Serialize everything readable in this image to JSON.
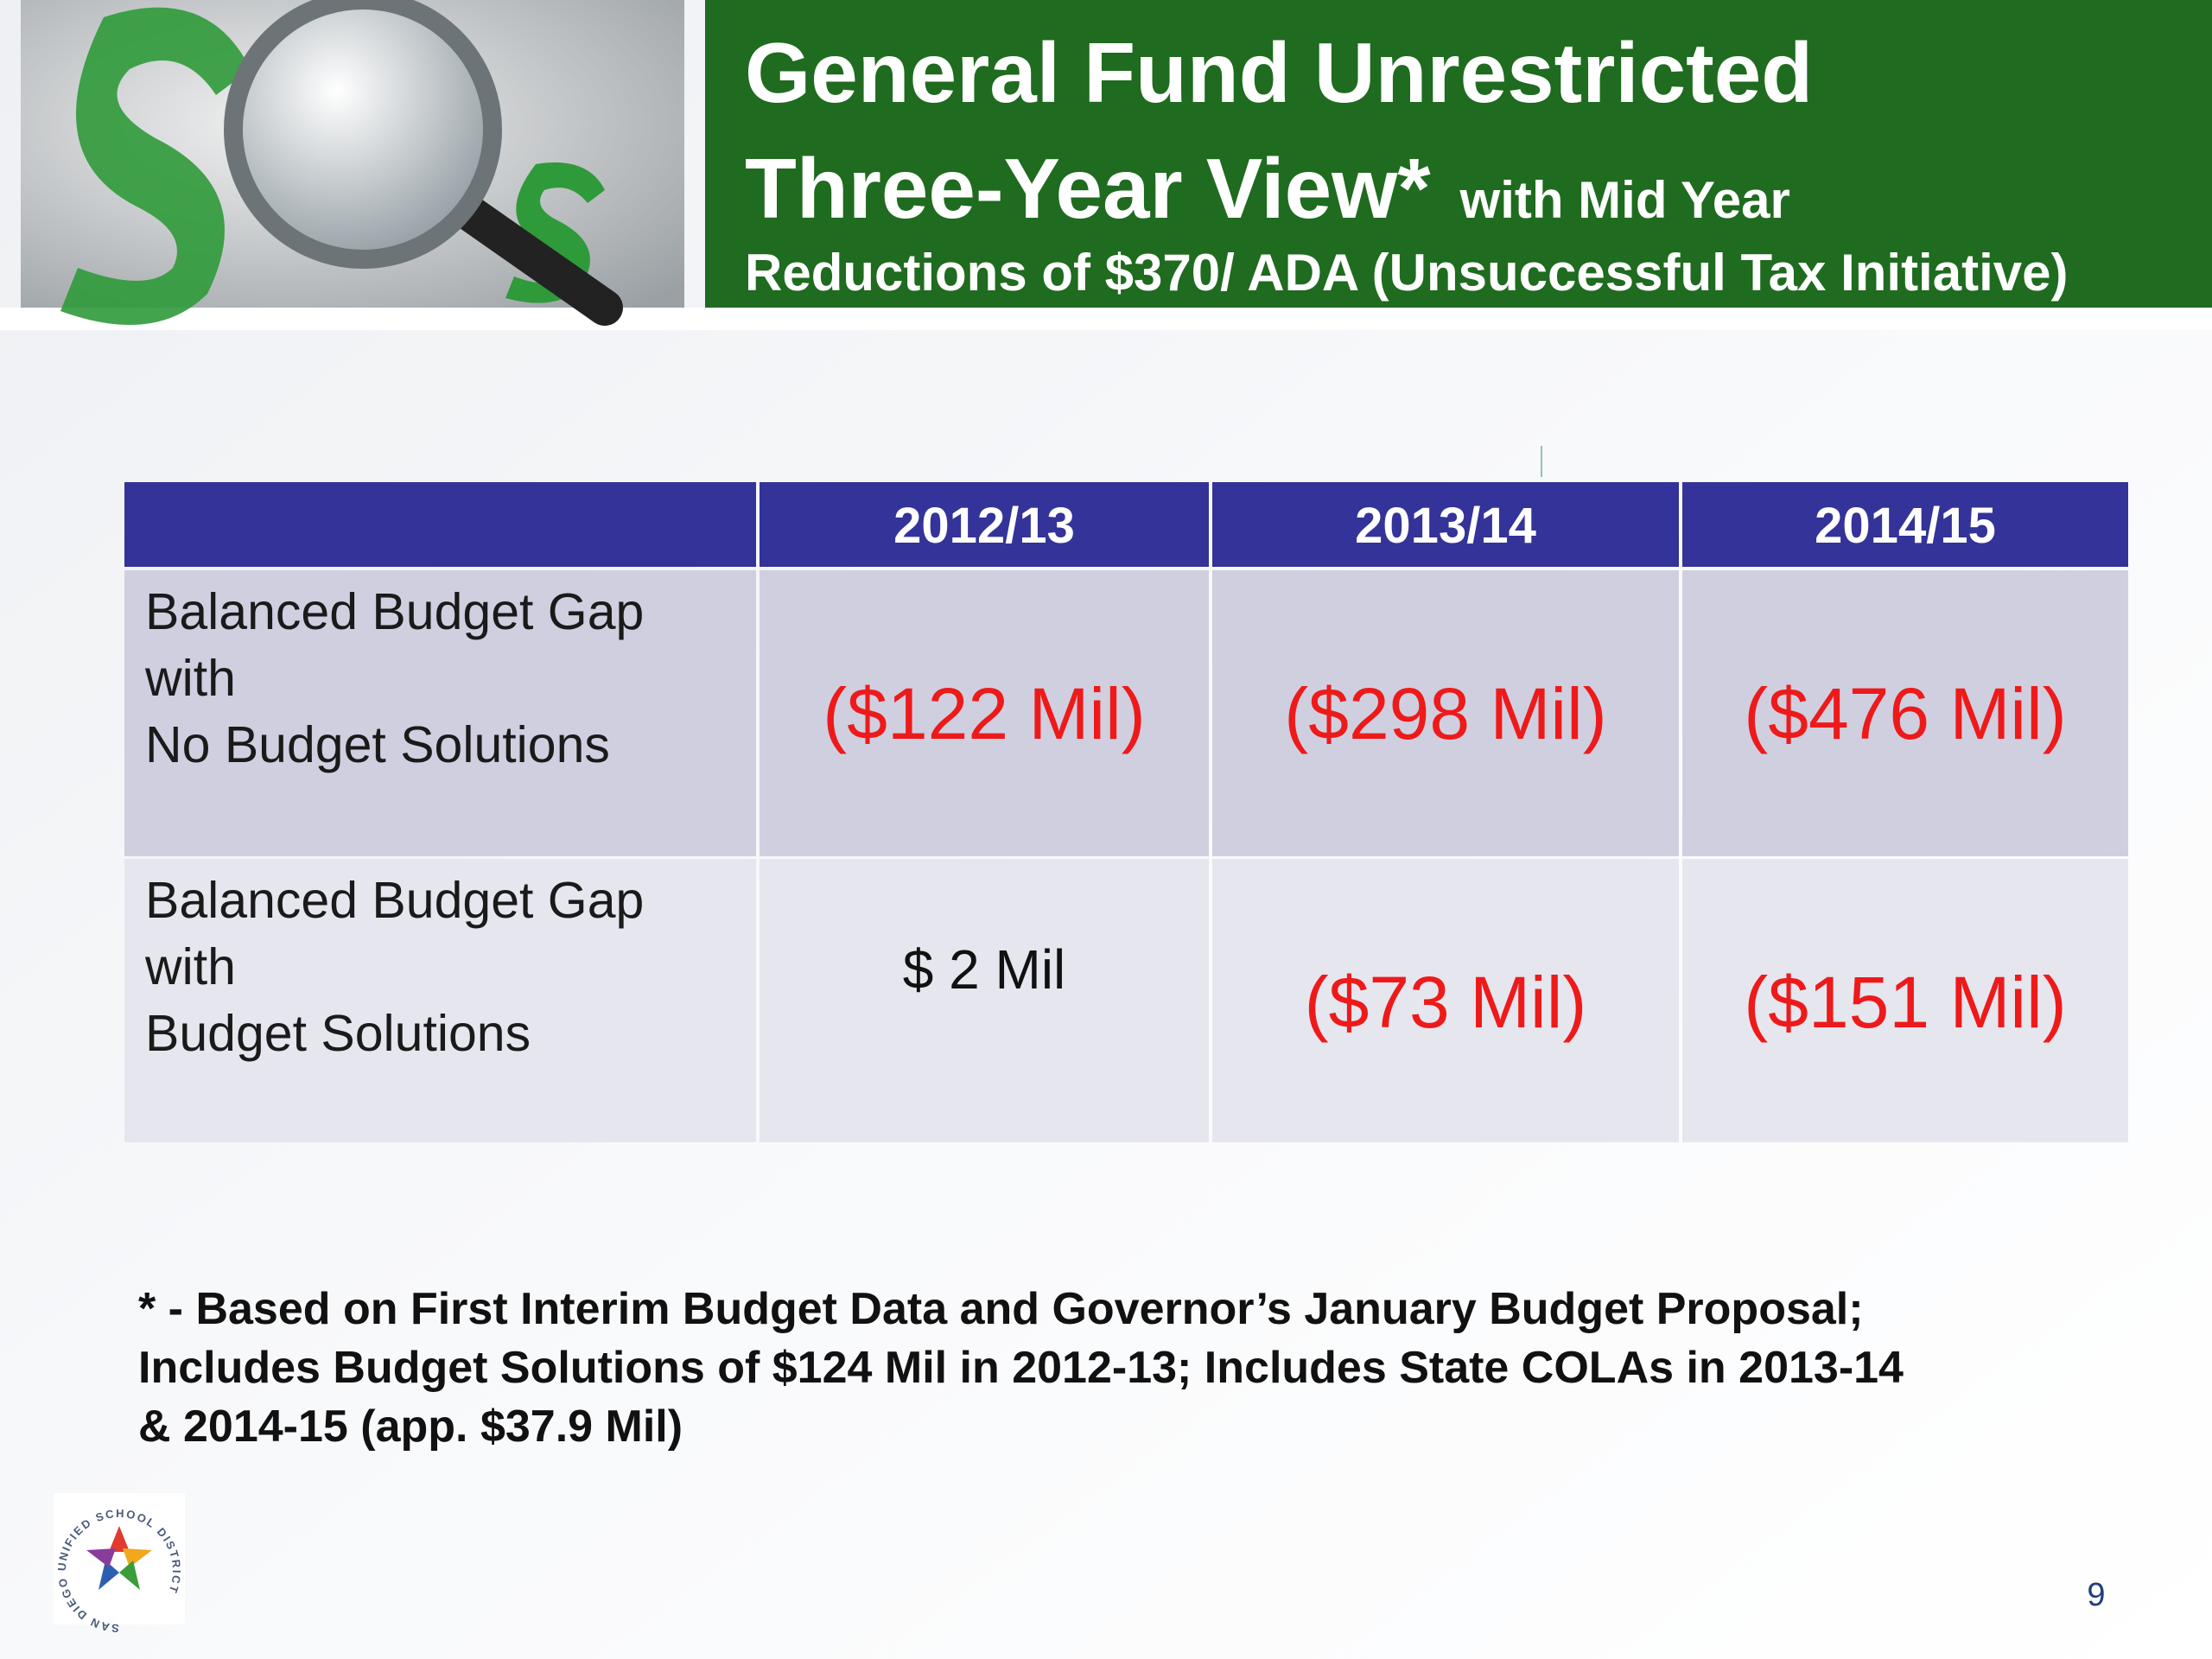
{
  "header": {
    "title_line1": "General Fund Unrestricted",
    "title_line2": "Three-Year View*",
    "title_line2_suffix": "with Mid Year",
    "title_line3": "Reductions of $370/ ADA (Unsuccessful Tax Initiative)"
  },
  "table": {
    "columns": [
      "2012/13",
      "2013/14",
      "2014/15"
    ],
    "rows": [
      {
        "label": [
          "Balanced Budget Gap",
          "with",
          "No Budget Solutions"
        ],
        "cells": [
          "($122 Mil)",
          "($298 Mil)",
          "($476 Mil)"
        ],
        "colors": [
          "#ee1a1a",
          "#ee1a1a",
          "#ee1a1a"
        ]
      },
      {
        "label": [
          "Balanced Budget Gap",
          "with",
          "Budget Solutions"
        ],
        "cells": [
          "$ 2 Mil",
          "($73 Mil)",
          "($151 Mil)"
        ],
        "colors": [
          "#111111",
          "#ee1a1a",
          "#ee1a1a"
        ]
      }
    ]
  },
  "footnote": [
    "* - Based on First Interim Budget Data and Governor’s January Budget Proposal;",
    "Includes Budget Solutions of $124 Mil in 2012-13; Includes State COLAs in 2013-14",
    "& 2014-15  (app. $37.9 Mil)"
  ],
  "logo_text": "SAN DIEGO UNIFIED SCHOOL DISTRICT",
  "page_number": "9"
}
